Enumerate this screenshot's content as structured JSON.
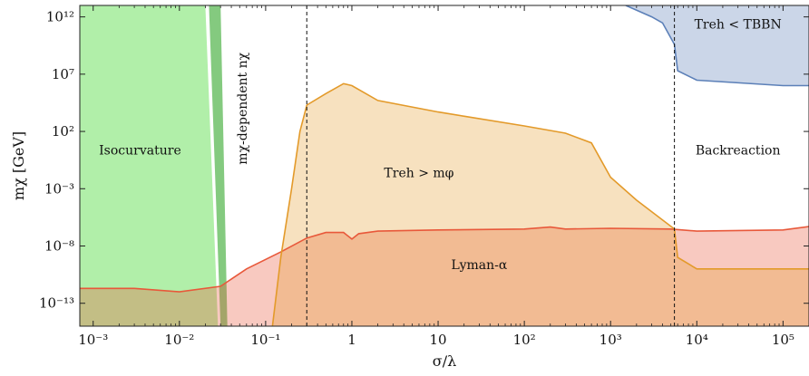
{
  "chart_data": {
    "type": "area",
    "xlabel": "σ/λ",
    "ylabel": "mχ [GeV]",
    "xscale": "log",
    "yscale": "log",
    "xlim": [
      0.0007,
      200000
    ],
    "ylim": [
      1e-15,
      10000000000000.0
    ],
    "x_ticks": [
      {
        "v": 0.001,
        "label": "10⁻³"
      },
      {
        "v": 0.01,
        "label": "10⁻²"
      },
      {
        "v": 0.1,
        "label": "10⁻¹"
      },
      {
        "v": 1,
        "label": "1"
      },
      {
        "v": 10,
        "label": "10"
      },
      {
        "v": 100,
        "label": "10²"
      },
      {
        "v": 1000,
        "label": "10³"
      },
      {
        "v": 10000,
        "label": "10⁴"
      },
      {
        "v": 100000,
        "label": "10⁵"
      }
    ],
    "y_ticks": [
      {
        "v": 1e-13,
        "label": "10⁻¹³"
      },
      {
        "v": 1e-08,
        "label": "10⁻⁸"
      },
      {
        "v": 0.001,
        "label": "10⁻³"
      },
      {
        "v": 100,
        "label": "10²"
      },
      {
        "v": 10000000,
        "label": "10⁷"
      },
      {
        "v": 1000000000000.0,
        "label": "10¹²"
      }
    ],
    "series": [
      {
        "name": "Isocurvature",
        "color": "#b1efa9",
        "edge": [
          [
            0.02,
            10000000000000.0
          ],
          [
            0.028,
            1e-15
          ]
        ]
      },
      {
        "color": "#6fc168",
        "band": [
          [
            0.022,
            10000000000000.0
          ],
          [
            0.03,
            10000000000000.0
          ],
          [
            0.036,
            1e-15
          ],
          [
            0.03,
            1e-15
          ]
        ]
      },
      {
        "name": "Lyman-α",
        "color": "#e8583a",
        "boundary": [
          [
            0.0007,
            2e-12
          ],
          [
            0.003,
            2e-12
          ],
          [
            0.01,
            1e-12
          ],
          [
            0.03,
            3e-12
          ],
          [
            0.06,
            1e-10
          ],
          [
            0.15,
            3e-09
          ],
          [
            0.3,
            5e-08
          ],
          [
            0.5,
            1.5e-07
          ],
          [
            0.8,
            1.5e-07
          ],
          [
            1,
            4e-08
          ],
          [
            1.2,
            1.2e-07
          ],
          [
            2,
            2e-07
          ],
          [
            10,
            2.5e-07
          ],
          [
            100,
            3e-07
          ],
          [
            200,
            4.5e-07
          ],
          [
            300,
            3e-07
          ],
          [
            1000,
            3.5e-07
          ],
          [
            5000,
            3e-07
          ],
          [
            10000,
            2e-07
          ],
          [
            100000,
            2.5e-07
          ],
          [
            200000,
            5e-07
          ]
        ]
      },
      {
        "name": "Treh > mφ",
        "color": "#e39a2a",
        "boundary": [
          [
            0.12,
            1e-15
          ],
          [
            0.15,
            1e-09
          ],
          [
            0.2,
            0.001
          ],
          [
            0.25,
            100
          ],
          [
            0.3,
            20000
          ],
          [
            0.5,
            200000
          ],
          [
            0.8,
            1500000
          ],
          [
            1,
            1000000
          ],
          [
            2,
            50000
          ],
          [
            10,
            5000
          ],
          [
            100,
            300
          ],
          [
            300,
            70
          ],
          [
            600,
            10
          ],
          [
            1000,
            0.01
          ],
          [
            2000,
            0.0001
          ],
          [
            5500,
            3e-07
          ],
          [
            6000,
            1e-09
          ],
          [
            10000,
            1e-10
          ],
          [
            100000,
            1e-10
          ],
          [
            200000,
            1e-10
          ]
        ]
      },
      {
        "name": "Treh < TBBN",
        "color": "#5c80b8",
        "boundary": [
          [
            1500,
            10000000000000.0
          ],
          [
            3000,
            1000000000000.0
          ],
          [
            4000,
            300000000000.0
          ],
          [
            5500,
            4000000000.0
          ],
          [
            6000,
            20000000.0
          ],
          [
            10000,
            3000000.0
          ],
          [
            100000,
            1000000.0
          ],
          [
            200000,
            1000000.0
          ]
        ]
      }
    ],
    "vlines": [
      0.3,
      5500
    ],
    "annotations": [
      {
        "text": "Isocurvature",
        "x": 0.0035,
        "y": 1
      },
      {
        "text": "mχ-dependent nχ",
        "x": 0.06,
        "y": 10000,
        "rotate": -90
      },
      {
        "text": "Treh > mφ",
        "x": 6,
        "y": 0.01
      },
      {
        "text": "Backreaction",
        "x": 30000,
        "y": 1
      },
      {
        "text": "Treh < TBBN",
        "x": 30000,
        "y": 100000000000.0
      },
      {
        "text": "Lyman-α",
        "x": 30,
        "y": 1e-10
      }
    ]
  }
}
